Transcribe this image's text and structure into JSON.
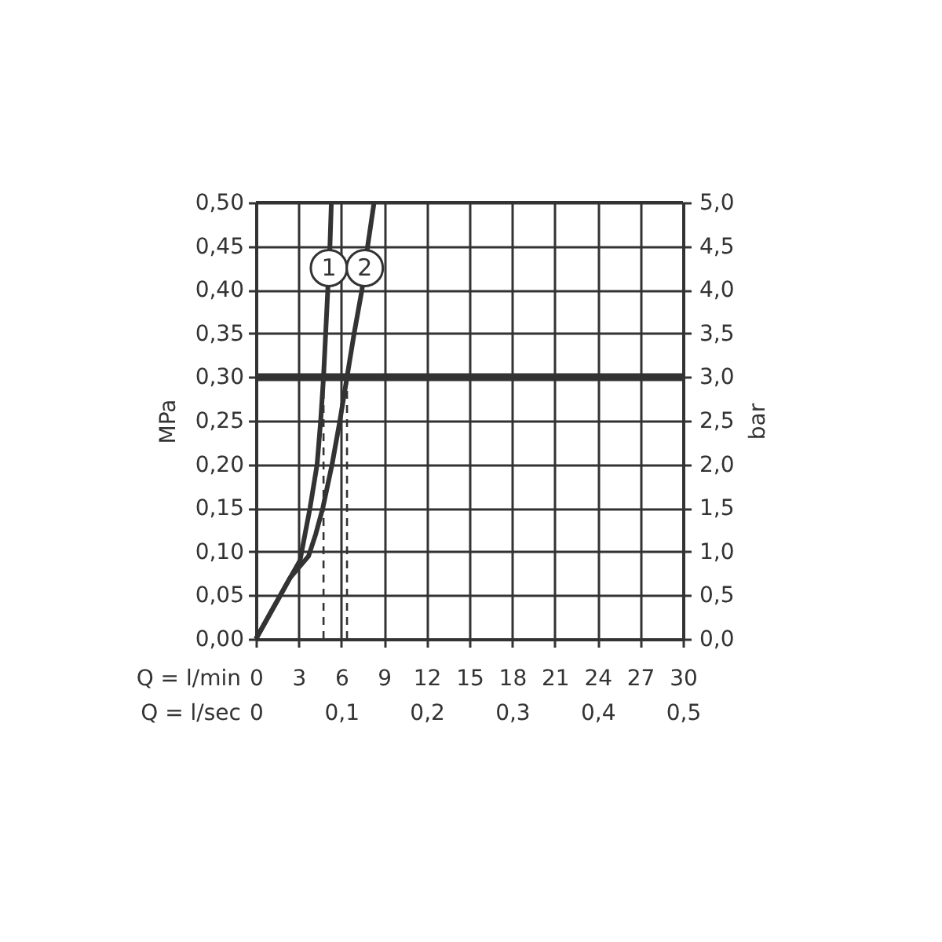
{
  "chart_data": {
    "type": "line",
    "xlabel": "Q = l/min",
    "x2label": "Q = l/sec",
    "ylabel": "MPa",
    "y2label": "bar",
    "xlim": [
      0,
      30
    ],
    "xticks": [
      0,
      3,
      6,
      9,
      12,
      15,
      18,
      21,
      24,
      27,
      30
    ],
    "x2lim": [
      0,
      0.5
    ],
    "x2ticks": [
      0,
      {
        "value": 0.1,
        "label": "0,1"
      },
      {
        "value": 0.2,
        "label": "0,2"
      },
      {
        "value": 0.3,
        "label": "0,3"
      },
      {
        "value": 0.4,
        "label": "0,4"
      },
      {
        "value": 0.5,
        "label": "0,5"
      }
    ],
    "ylim": [
      0,
      0.5
    ],
    "yticks": [
      {
        "value": 0,
        "label": "0,00"
      },
      {
        "value": 0.05,
        "label": "0,05"
      },
      {
        "value": 0.1,
        "label": "0,10"
      },
      {
        "value": 0.15,
        "label": "0,15"
      },
      {
        "value": 0.2,
        "label": "0,20"
      },
      {
        "value": 0.25,
        "label": "0,25"
      },
      {
        "value": 0.3,
        "label": "0,30"
      },
      {
        "value": 0.35,
        "label": "0,35"
      },
      {
        "value": 0.4,
        "label": "0,40"
      },
      {
        "value": 0.45,
        "label": "0,45"
      },
      {
        "value": 0.5,
        "label": "0,50"
      }
    ],
    "y2lim": [
      0,
      5
    ],
    "y2ticks": [
      {
        "value": 0,
        "label": "0,0"
      },
      {
        "value": 0.5,
        "label": "0,5"
      },
      {
        "value": 1,
        "label": "1,0"
      },
      {
        "value": 1.5,
        "label": "1,5"
      },
      {
        "value": 2,
        "label": "2,0"
      },
      {
        "value": 2.5,
        "label": "2,5"
      },
      {
        "value": 3,
        "label": "3,0"
      },
      {
        "value": 3.5,
        "label": "3,5"
      },
      {
        "value": 4,
        "label": "4,0"
      },
      {
        "value": 4.5,
        "label": "4,5"
      },
      {
        "value": 5,
        "label": "5,0"
      }
    ],
    "grid": true,
    "ref_lines": [
      {
        "axis": "y",
        "value": 0.3,
        "color": "#333333"
      }
    ],
    "series": [
      {
        "name": "1",
        "color": "#333333",
        "x": [
          0,
          1.2,
          2.4,
          3.1,
          3.45,
          3.8,
          4.3,
          4.55,
          4.75,
          4.9,
          5.05,
          5.2,
          5.3
        ],
        "values": [
          0,
          0.035,
          0.07,
          0.09,
          0.12,
          0.15,
          0.2,
          0.25,
          0.3,
          0.35,
          0.4,
          0.45,
          0.5
        ]
      },
      {
        "name": "2",
        "color": "#333333",
        "x": [
          0,
          1.2,
          2.4,
          3.7,
          4.2,
          4.7,
          5.35,
          5.9,
          6.4,
          6.9,
          7.45,
          7.85,
          8.3
        ],
        "values": [
          0,
          0.035,
          0.07,
          0.095,
          0.12,
          0.15,
          0.2,
          0.25,
          0.3,
          0.35,
          0.4,
          0.45,
          0.5
        ]
      },
      {
        "type": "line",
        "line_style": "dashed",
        "color": "#333333",
        "x": [
          4.75,
          4.75
        ],
        "values": [
          0,
          0.3
        ]
      },
      {
        "type": "line",
        "line_style": "dashed",
        "color": "#333333",
        "x": [
          6.4,
          6.4
        ],
        "values": [
          0,
          0.3
        ]
      }
    ]
  }
}
